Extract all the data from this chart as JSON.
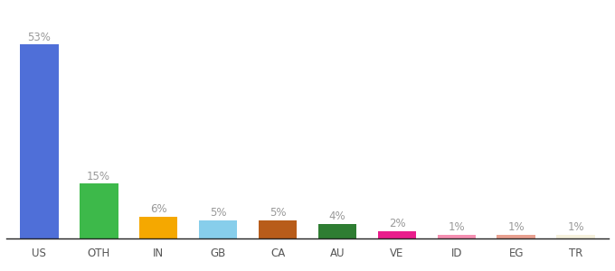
{
  "categories": [
    "US",
    "OTH",
    "IN",
    "GB",
    "CA",
    "AU",
    "VE",
    "ID",
    "EG",
    "TR"
  ],
  "values": [
    53,
    15,
    6,
    5,
    5,
    4,
    2,
    1,
    1,
    1
  ],
  "bar_colors": [
    "#4F6FD8",
    "#3DB94A",
    "#F5A800",
    "#87CEEB",
    "#B85C1A",
    "#2E7D32",
    "#E91E8C",
    "#F48FB1",
    "#E8A090",
    "#F5F0DC"
  ],
  "labels": [
    "53%",
    "15%",
    "6%",
    "5%",
    "5%",
    "4%",
    "2%",
    "1%",
    "1%",
    "1%"
  ],
  "label_color": "#999999",
  "background_color": "#ffffff",
  "ylim": [
    0,
    60
  ],
  "bar_width": 0.65,
  "label_fontsize": 8.5,
  "tick_fontsize": 8.5,
  "tick_color": "#555555",
  "spine_color": "#222222"
}
